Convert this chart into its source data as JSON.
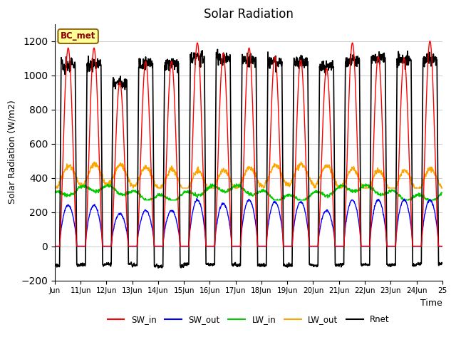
{
  "title": "Solar Radiation",
  "ylabel": "Solar Radiation (W/m2)",
  "xlabel": "Time",
  "site_label": "BC_met",
  "ylim": [
    -200,
    1300
  ],
  "yticks": [
    -200,
    0,
    200,
    400,
    600,
    800,
    1000,
    1200
  ],
  "n_days": 15,
  "dt_hours": 0.25,
  "colors": {
    "SW_in": "#ff0000",
    "SW_out": "#0000ff",
    "LW_in": "#00cc00",
    "LW_out": "#ffa500",
    "Rnet": "#000000"
  },
  "bg_color": "#ffffff",
  "grid_color": "#cccccc",
  "sunrise": 4.5,
  "sunset": 20.5,
  "SW_in_peaks": [
    1160,
    1160,
    960,
    1080,
    1080,
    1190,
    1130,
    1160,
    1110,
    1090,
    1040,
    1190,
    1110,
    1100,
    1200
  ],
  "Rnet_peaks": [
    1060,
    1060,
    960,
    1070,
    1070,
    1100,
    1100,
    1090,
    1080,
    1080,
    1050,
    1090,
    1100,
    1090,
    1090
  ],
  "SW_out_peaks": [
    240,
    240,
    190,
    210,
    210,
    270,
    250,
    270,
    260,
    260,
    210,
    270,
    270,
    270,
    270
  ]
}
